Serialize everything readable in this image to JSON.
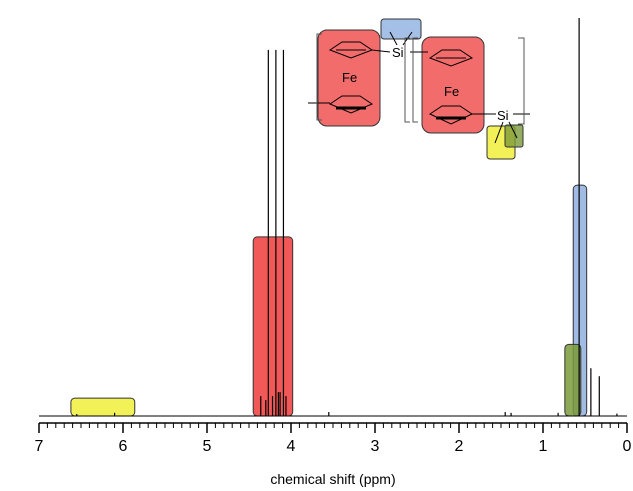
{
  "chart_data": {
    "type": "line",
    "title": "",
    "xlabel": "chemical shift (ppm)",
    "ylabel": "",
    "x_reversed": true,
    "xlim": [
      7,
      0
    ],
    "ylim": [
      0,
      1
    ],
    "major_ticks": [
      7,
      6,
      5,
      4,
      3,
      2,
      1,
      0
    ],
    "minor_tick_step": 0.1,
    "grid": false,
    "series": [
      {
        "peaks": [
          {
            "ppm": 6.55,
            "height": 0.005
          },
          {
            "ppm": 6.1,
            "height": 0.008
          },
          {
            "ppm": 4.36,
            "height": 0.05
          },
          {
            "ppm": 4.3,
            "height": 0.04
          },
          {
            "ppm": 4.27,
            "height": 0.92
          },
          {
            "ppm": 4.22,
            "height": 0.05
          },
          {
            "ppm": 4.18,
            "height": 0.92
          },
          {
            "ppm": 4.15,
            "height": 0.06
          },
          {
            "ppm": 4.13,
            "height": 0.06
          },
          {
            "ppm": 4.09,
            "height": 0.92
          },
          {
            "ppm": 4.06,
            "height": 0.05
          },
          {
            "ppm": 3.55,
            "height": 0.01
          },
          {
            "ppm": 1.45,
            "height": 0.01
          },
          {
            "ppm": 1.38,
            "height": 0.008
          },
          {
            "ppm": 0.82,
            "height": 0.008
          },
          {
            "ppm": 0.57,
            "height": 1.0
          },
          {
            "ppm": 0.43,
            "height": 0.12
          },
          {
            "ppm": 0.33,
            "height": 0.1
          },
          {
            "ppm": 0.12,
            "height": 0.006
          }
        ]
      }
    ],
    "highlight_regions": [
      {
        "color": "yellow",
        "fill": "#f0ef3a",
        "from_ppm": 6.62,
        "to_ppm": 5.86,
        "level": 0.045
      },
      {
        "color": "red",
        "fill": "#ef3b3b",
        "from_ppm": 4.45,
        "to_ppm": 3.98,
        "level": 0.45
      },
      {
        "color": "blue",
        "fill": "#8fb0e0",
        "from_ppm": 0.64,
        "to_ppm": 0.48,
        "level": 0.58
      },
      {
        "color": "olive",
        "fill": "#7a9a3a",
        "from_ppm": 0.74,
        "to_ppm": 0.55,
        "level": 0.18
      }
    ],
    "structure": {
      "atom_labels": [
        "Fe",
        "Fe",
        "Si",
        "Si"
      ],
      "highlight_colors": {
        "cp_rings": "#ef3b3b",
        "si_methyl_bridge": "#8fb0e0",
        "vinyl": "#f0ef3a",
        "si_methyl_end": "#7a9a3a"
      }
    }
  }
}
